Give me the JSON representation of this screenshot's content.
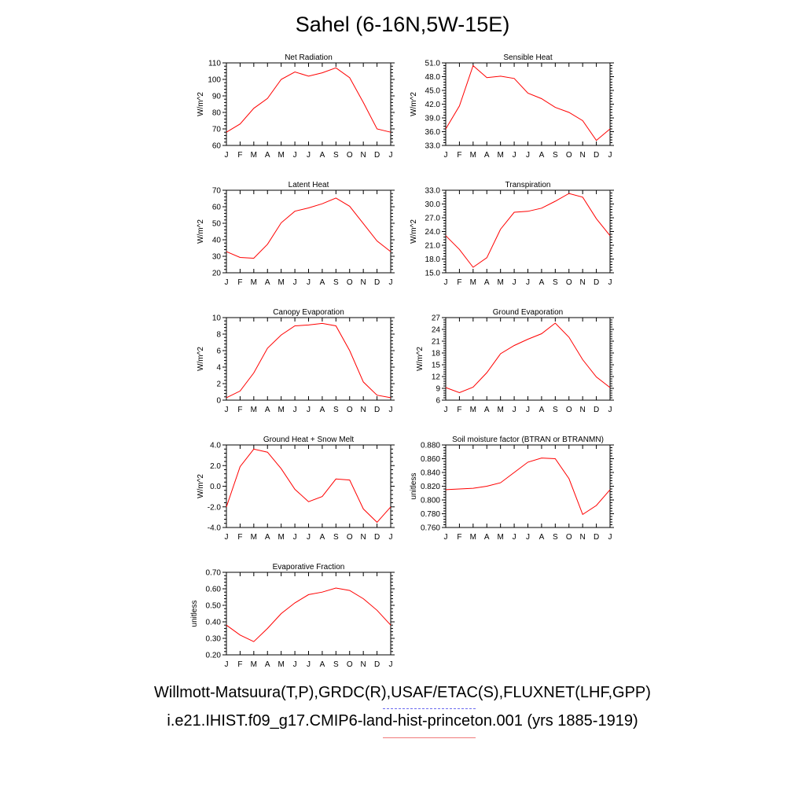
{
  "title": "Sahel (6-16N,5W-15E)",
  "footer": {
    "line1": "Willmott-Matsuura(T,P),GRDC(R),USAF/ETAC(S),FLUXNET(LHF,GPP)",
    "line2": "i.e21.IHIST.f09_g17.CMIP6-land-hist-princeton.001 (yrs 1885-1919)"
  },
  "colors": {
    "model_line": "#ff0000",
    "obs_legend_dash": "#6b6bf0",
    "model_legend": "#f07a7a",
    "axis": "#000000"
  },
  "chart_data": [
    {
      "type": "line",
      "title": "Net Radiation",
      "ylabel": "W/m^2",
      "categories": [
        "J",
        "F",
        "M",
        "A",
        "M",
        "J",
        "J",
        "A",
        "S",
        "O",
        "N",
        "D",
        "J"
      ],
      "ylim": [
        60,
        110
      ],
      "yticks": [
        60,
        70,
        80,
        90,
        100,
        110
      ],
      "ytick_labels": [
        "60",
        "70",
        "80",
        "90",
        "100",
        "110"
      ],
      "series": [
        {
          "values": [
            68,
            73,
            82.5,
            88.5,
            100,
            104.5,
            102,
            104,
            107,
            101,
            86,
            70,
            68
          ]
        }
      ]
    },
    {
      "type": "line",
      "title": "Sensible Heat",
      "ylabel": "W/m^2",
      "categories": [
        "J",
        "F",
        "M",
        "A",
        "M",
        "J",
        "J",
        "A",
        "S",
        "O",
        "N",
        "D",
        "J"
      ],
      "ylim": [
        33,
        51
      ],
      "yticks": [
        33,
        36,
        39,
        42,
        45,
        48,
        51
      ],
      "ytick_labels": [
        "33.0",
        "36.0",
        "39.0",
        "42.0",
        "45.0",
        "48.0",
        "51.0"
      ],
      "series": [
        {
          "values": [
            36.6,
            41.6,
            50.4,
            47.8,
            48.1,
            47.6,
            44.4,
            43.2,
            41.3,
            40.2,
            38.4,
            34.1,
            36.6
          ]
        }
      ]
    },
    {
      "type": "line",
      "title": "Latent Heat",
      "ylabel": "W/m^2",
      "categories": [
        "J",
        "F",
        "M",
        "A",
        "M",
        "J",
        "J",
        "A",
        "S",
        "O",
        "N",
        "D",
        "J"
      ],
      "ylim": [
        20,
        70
      ],
      "yticks": [
        20,
        30,
        40,
        50,
        60,
        70
      ],
      "ytick_labels": [
        "20",
        "30",
        "40",
        "50",
        "60",
        "70"
      ],
      "series": [
        {
          "values": [
            32.8,
            29.3,
            28.8,
            37.3,
            50.3,
            57.3,
            59.3,
            61.8,
            65.3,
            60.3,
            49.8,
            39.3,
            32.8
          ]
        }
      ]
    },
    {
      "type": "line",
      "title": "Transpiration",
      "ylabel": "W/m^2",
      "categories": [
        "J",
        "F",
        "M",
        "A",
        "M",
        "J",
        "J",
        "A",
        "S",
        "O",
        "N",
        "D",
        "J"
      ],
      "ylim": [
        15,
        33
      ],
      "yticks": [
        15,
        18,
        21,
        24,
        27,
        30,
        33
      ],
      "ytick_labels": [
        "15.0",
        "18.0",
        "21.0",
        "24.0",
        "27.0",
        "30.0",
        "33.0"
      ],
      "series": [
        {
          "values": [
            23.1,
            20.1,
            16.2,
            18.3,
            24.5,
            28.2,
            28.4,
            29.1,
            30.6,
            32.3,
            31.5,
            26.8,
            23.1
          ]
        }
      ]
    },
    {
      "type": "line",
      "title": "Canopy Evaporation",
      "ylabel": "W/m^2",
      "categories": [
        "J",
        "F",
        "M",
        "A",
        "M",
        "J",
        "J",
        "A",
        "S",
        "O",
        "N",
        "D",
        "J"
      ],
      "ylim": [
        0,
        10
      ],
      "yticks": [
        0,
        2,
        4,
        6,
        8,
        10
      ],
      "ytick_labels": [
        "0",
        "2",
        "4",
        "6",
        "8",
        "10"
      ],
      "series": [
        {
          "values": [
            0.3,
            1.1,
            3.3,
            6.3,
            7.9,
            9.0,
            9.1,
            9.3,
            9.0,
            6.0,
            2.2,
            0.6,
            0.3
          ]
        }
      ]
    },
    {
      "type": "line",
      "title": "Ground Evaporation",
      "ylabel": "W/m^2",
      "categories": [
        "J",
        "F",
        "M",
        "A",
        "M",
        "J",
        "J",
        "A",
        "S",
        "O",
        "N",
        "D",
        "J"
      ],
      "ylim": [
        6,
        27
      ],
      "yticks": [
        6,
        9,
        12,
        15,
        18,
        21,
        24,
        27
      ],
      "ytick_labels": [
        "6",
        "9",
        "12",
        "15",
        "18",
        "21",
        "24",
        "27"
      ],
      "series": [
        {
          "values": [
            9.2,
            7.9,
            9.3,
            13.0,
            17.8,
            19.9,
            21.5,
            22.9,
            25.6,
            22.0,
            16.3,
            11.9,
            9.2
          ]
        }
      ]
    },
    {
      "type": "line",
      "title": "Ground Heat + Snow Melt",
      "ylabel": "W/m^2",
      "categories": [
        "J",
        "F",
        "M",
        "A",
        "M",
        "J",
        "J",
        "A",
        "S",
        "O",
        "N",
        "D",
        "J"
      ],
      "ylim": [
        -4,
        4
      ],
      "yticks": [
        -4,
        -2,
        0,
        2,
        4
      ],
      "ytick_labels": [
        "-4.0",
        "-2.0",
        "0.0",
        "2.0",
        "4.0"
      ],
      "series": [
        {
          "values": [
            -2.0,
            1.9,
            3.6,
            3.3,
            1.7,
            -0.3,
            -1.5,
            -1.0,
            0.7,
            0.6,
            -2.2,
            -3.5,
            -2.0
          ]
        }
      ]
    },
    {
      "type": "line",
      "title": "Soil moisture factor (BTRAN or BTRANMN)",
      "ylabel": "unitless",
      "categories": [
        "J",
        "F",
        "M",
        "A",
        "M",
        "J",
        "J",
        "A",
        "S",
        "O",
        "N",
        "D",
        "J"
      ],
      "ylim": [
        0.76,
        0.88
      ],
      "yticks": [
        0.76,
        0.78,
        0.8,
        0.82,
        0.84,
        0.86,
        0.88
      ],
      "ytick_labels": [
        "0.760",
        "0.780",
        "0.800",
        "0.820",
        "0.840",
        "0.860",
        "0.880"
      ],
      "series": [
        {
          "values": [
            0.815,
            0.816,
            0.817,
            0.82,
            0.825,
            0.84,
            0.855,
            0.861,
            0.86,
            0.831,
            0.779,
            0.792,
            0.815
          ]
        }
      ]
    },
    {
      "type": "line",
      "title": "Evaporative Fraction",
      "ylabel": "unitless",
      "categories": [
        "J",
        "F",
        "M",
        "A",
        "M",
        "J",
        "J",
        "A",
        "S",
        "O",
        "N",
        "D",
        "J"
      ],
      "ylim": [
        0.2,
        0.7
      ],
      "yticks": [
        0.2,
        0.3,
        0.4,
        0.5,
        0.6,
        0.7
      ],
      "ytick_labels": [
        "0.20",
        "0.30",
        "0.40",
        "0.50",
        "0.60",
        "0.70"
      ],
      "series": [
        {
          "values": [
            0.38,
            0.32,
            0.28,
            0.36,
            0.45,
            0.515,
            0.565,
            0.58,
            0.605,
            0.59,
            0.54,
            0.47,
            0.38
          ]
        }
      ]
    }
  ]
}
